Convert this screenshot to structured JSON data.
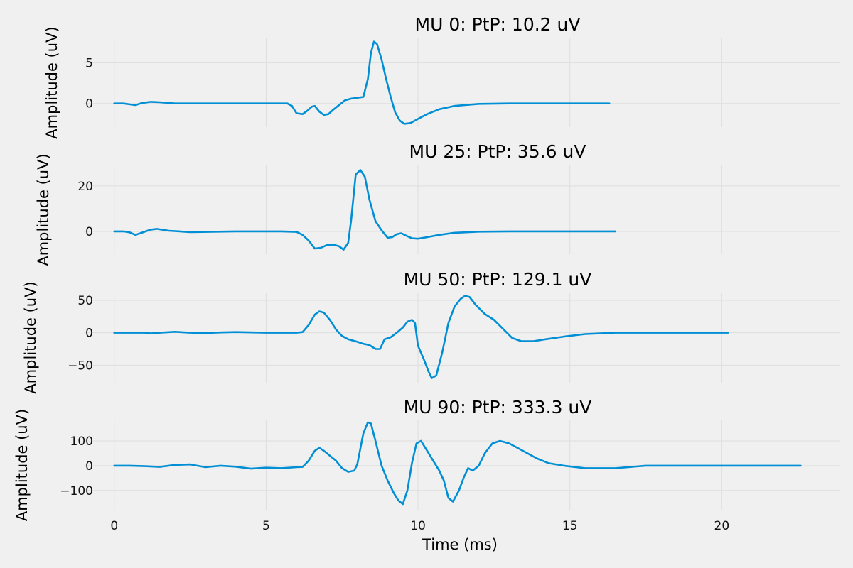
{
  "chart_data": [
    {
      "type": "line",
      "title": "MU 0: PtP: 10.2 uV",
      "ylabel": "Amplitude (uV)",
      "xlabel": "",
      "xlim": [
        -1,
        23.9
      ],
      "ylim": [
        -2.9,
        8.0
      ],
      "yticks": [
        0,
        5
      ],
      "ytick_labels": [
        "0",
        "5"
      ],
      "xticks": [
        0,
        5,
        10,
        15,
        20
      ],
      "grid": true,
      "x": [
        0,
        0.3,
        0.5,
        0.7,
        0.9,
        1.2,
        1.5,
        2,
        3,
        4,
        5,
        5.7,
        5.85,
        6,
        6.2,
        6.35,
        6.5,
        6.6,
        6.75,
        6.9,
        7.05,
        7.2,
        7.4,
        7.6,
        7.8,
        8.0,
        8.2,
        8.35,
        8.45,
        8.55,
        8.65,
        8.8,
        8.95,
        9.1,
        9.25,
        9.4,
        9.55,
        9.75,
        10,
        10.3,
        10.7,
        11.2,
        12,
        13,
        14,
        15,
        16.3
      ],
      "y": [
        0,
        0,
        -0.1,
        -0.2,
        0.05,
        0.2,
        0.15,
        0,
        0,
        0,
        0,
        0,
        -0.3,
        -1.2,
        -1.3,
        -0.9,
        -0.4,
        -0.3,
        -1.0,
        -1.4,
        -1.3,
        -0.8,
        -0.2,
        0.4,
        0.6,
        0.7,
        0.8,
        3.0,
        6.2,
        7.6,
        7.3,
        5.4,
        3.0,
        0.8,
        -1.1,
        -2.1,
        -2.5,
        -2.4,
        -1.9,
        -1.3,
        -0.7,
        -0.3,
        -0.05,
        0,
        0,
        0,
        0
      ]
    },
    {
      "type": "line",
      "title": "MU 25: PtP: 35.6 uV",
      "ylabel": "Amplitude (uV)",
      "xlabel": "",
      "xlim": [
        -1,
        23.9
      ],
      "ylim": [
        -10,
        29
      ],
      "yticks": [
        0,
        20
      ],
      "ytick_labels": [
        "0",
        "20"
      ],
      "xticks": [
        0,
        5,
        10,
        15,
        20
      ],
      "grid": true,
      "x": [
        0,
        0.3,
        0.5,
        0.7,
        0.9,
        1.2,
        1.4,
        1.8,
        2.5,
        4,
        5.5,
        6.0,
        6.2,
        6.4,
        6.6,
        6.8,
        7.0,
        7.2,
        7.4,
        7.55,
        7.7,
        7.8,
        7.95,
        8.1,
        8.25,
        8.4,
        8.6,
        8.8,
        9.0,
        9.15,
        9.3,
        9.45,
        9.6,
        9.8,
        10.0,
        10.3,
        10.7,
        11.2,
        12,
        13,
        14,
        16.5
      ],
      "y": [
        0,
        0,
        -0.4,
        -1.5,
        -0.6,
        0.8,
        1.1,
        0.3,
        -0.3,
        0,
        0,
        -0.2,
        -1.5,
        -4.0,
        -7.5,
        -7.2,
        -6.0,
        -5.8,
        -6.5,
        -8.0,
        -5.0,
        5.0,
        25.0,
        27.0,
        24.0,
        14.0,
        4.5,
        0.5,
        -2.8,
        -2.5,
        -1.2,
        -0.8,
        -1.8,
        -3.0,
        -3.2,
        -2.5,
        -1.5,
        -0.6,
        -0.1,
        0,
        0,
        0
      ]
    },
    {
      "type": "line",
      "title": "MU 50: PtP: 129.1 uV",
      "ylabel": "Amplitude (uV)",
      "xlabel": "",
      "xlim": [
        -1,
        23.9
      ],
      "ylim": [
        -77,
        62
      ],
      "yticks": [
        -50,
        0,
        50
      ],
      "ytick_labels": [
        "−50",
        "0",
        "50"
      ],
      "xticks": [
        0,
        5,
        10,
        15,
        20
      ],
      "grid": true,
      "x": [
        0,
        0.5,
        1,
        1.2,
        1.5,
        2,
        2.5,
        3,
        3.5,
        4,
        5,
        6,
        6.2,
        6.4,
        6.6,
        6.75,
        6.9,
        7.1,
        7.3,
        7.5,
        7.7,
        8.0,
        8.2,
        8.4,
        8.6,
        8.75,
        8.9,
        9.1,
        9.3,
        9.5,
        9.65,
        9.8,
        9.9,
        10.0,
        10.2,
        10.35,
        10.45,
        10.6,
        10.8,
        11.0,
        11.2,
        11.4,
        11.55,
        11.7,
        11.9,
        12.2,
        12.5,
        12.8,
        13.1,
        13.4,
        13.8,
        14.2,
        14.8,
        15.5,
        16.5,
        18,
        20.2
      ],
      "y": [
        0,
        0,
        0,
        -1,
        0,
        1.5,
        0,
        -0.5,
        0.5,
        1,
        0,
        0,
        1,
        12,
        28,
        33,
        31,
        20,
        5,
        -5,
        -10,
        -14,
        -17,
        -19,
        -25,
        -25,
        -10,
        -7,
        0,
        8,
        17,
        20,
        15,
        -20,
        -42,
        -60,
        -70,
        -66,
        -30,
        15,
        40,
        52,
        57,
        55,
        43,
        29,
        20,
        6,
        -8,
        -13,
        -13,
        -10,
        -6,
        -2,
        0,
        0,
        0
      ]
    },
    {
      "type": "line",
      "title": "MU 90: PtP: 333.3 uV",
      "ylabel": "Amplitude (uV)",
      "xlabel": "Time (ms)",
      "xlim": [
        -1,
        23.9
      ],
      "ylim": [
        -178,
        183
      ],
      "yticks": [
        -100,
        0,
        100
      ],
      "ytick_labels": [
        "−100",
        "0",
        "100"
      ],
      "xticks": [
        0,
        5,
        10,
        15,
        20
      ],
      "xtick_labels": [
        "0",
        "5",
        "10",
        "15",
        "20"
      ],
      "grid": true,
      "x": [
        0,
        0.5,
        1,
        1.5,
        2,
        2.5,
        3,
        3.5,
        4,
        4.5,
        5,
        5.5,
        6,
        6.2,
        6.4,
        6.6,
        6.75,
        6.9,
        7.1,
        7.3,
        7.5,
        7.7,
        7.9,
        8.0,
        8.2,
        8.35,
        8.45,
        8.6,
        8.8,
        9.0,
        9.2,
        9.35,
        9.5,
        9.65,
        9.8,
        9.95,
        10.1,
        10.3,
        10.5,
        10.7,
        10.85,
        11.0,
        11.15,
        11.35,
        11.5,
        11.65,
        11.8,
        12.0,
        12.2,
        12.45,
        12.7,
        13.0,
        13.3,
        13.6,
        13.9,
        14.3,
        14.8,
        15.5,
        16.5,
        17.5,
        19,
        21,
        22.6
      ],
      "y": [
        0,
        0,
        -2,
        -5,
        3,
        5,
        -6,
        0,
        -4,
        -12,
        -8,
        -10,
        -6,
        -5,
        20,
        60,
        72,
        60,
        40,
        20,
        -10,
        -25,
        -20,
        5,
        130,
        175,
        170,
        100,
        0,
        -60,
        -110,
        -140,
        -155,
        -100,
        10,
        90,
        100,
        60,
        20,
        -20,
        -60,
        -130,
        -145,
        -100,
        -50,
        -10,
        -20,
        0,
        50,
        90,
        100,
        90,
        70,
        50,
        30,
        10,
        0,
        -10,
        -10,
        0,
        0,
        0,
        0
      ]
    }
  ]
}
